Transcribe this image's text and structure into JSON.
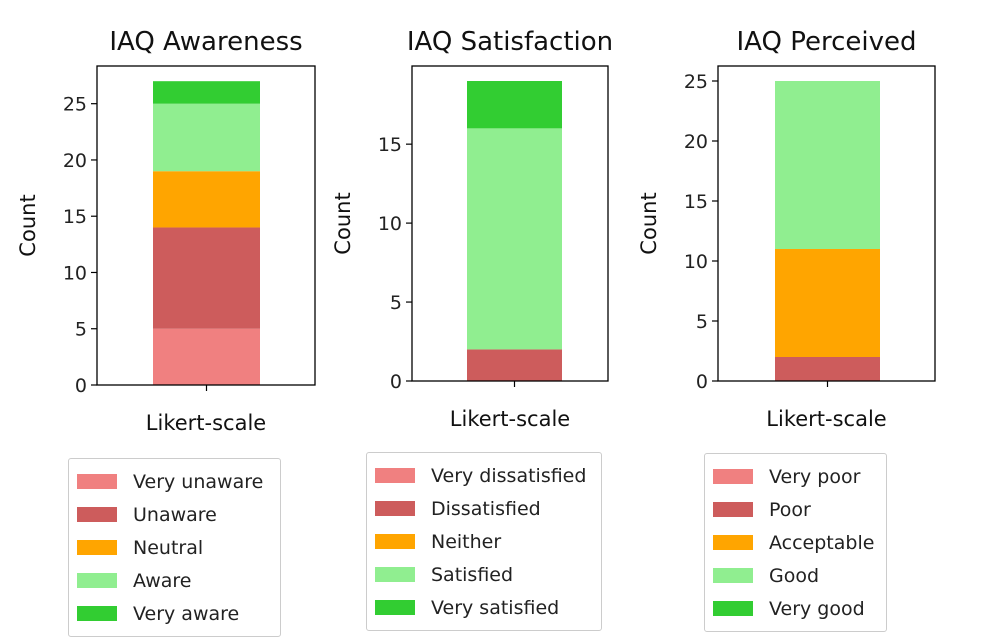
{
  "chart_data": [
    {
      "type": "bar",
      "stacked": true,
      "title": "IAQ Awareness",
      "xlabel": "Likert-scale",
      "ylabel": "Count",
      "categories": [
        ""
      ],
      "ylim": [
        0,
        28.35
      ],
      "yticks": [
        0,
        5,
        10,
        15,
        20,
        25
      ],
      "series": [
        {
          "name": "Very unaware",
          "values": [
            5
          ],
          "color": "#f08080"
        },
        {
          "name": "Unaware",
          "values": [
            9
          ],
          "color": "#cd5c5c"
        },
        {
          "name": "Neutral",
          "values": [
            5
          ],
          "color": "#ffa500"
        },
        {
          "name": "Aware",
          "values": [
            6
          ],
          "color": "#90ee90"
        },
        {
          "name": "Very aware",
          "values": [
            2
          ],
          "color": "#32cd32"
        }
      ],
      "legend_position": "below"
    },
    {
      "type": "bar",
      "stacked": true,
      "title": "IAQ Satisfaction",
      "xlabel": "Likert-scale",
      "ylabel": "Count",
      "categories": [
        ""
      ],
      "ylim": [
        0,
        19.95
      ],
      "yticks": [
        0,
        5,
        10,
        15
      ],
      "series": [
        {
          "name": "Very dissatisfied",
          "values": [
            0
          ],
          "color": "#f08080"
        },
        {
          "name": "Dissatisfied",
          "values": [
            2
          ],
          "color": "#cd5c5c"
        },
        {
          "name": "Neither",
          "values": [
            0
          ],
          "color": "#ffa500"
        },
        {
          "name": "Satisfied",
          "values": [
            14
          ],
          "color": "#90ee90"
        },
        {
          "name": "Very satisfied",
          "values": [
            3
          ],
          "color": "#32cd32"
        }
      ],
      "legend_position": "below"
    },
    {
      "type": "bar",
      "stacked": true,
      "title": "IAQ Perceived",
      "xlabel": "Likert-scale",
      "ylabel": "Count",
      "categories": [
        ""
      ],
      "ylim": [
        0,
        26.25
      ],
      "yticks": [
        0,
        5,
        10,
        15,
        20,
        25
      ],
      "series": [
        {
          "name": "Very poor",
          "values": [
            0
          ],
          "color": "#f08080"
        },
        {
          "name": "Poor",
          "values": [
            2
          ],
          "color": "#cd5c5c"
        },
        {
          "name": "Acceptable",
          "values": [
            9
          ],
          "color": "#ffa500"
        },
        {
          "name": "Good",
          "values": [
            14
          ],
          "color": "#90ee90"
        },
        {
          "name": "Very good",
          "values": [
            0
          ],
          "color": "#32cd32"
        }
      ],
      "legend_position": "below"
    }
  ]
}
